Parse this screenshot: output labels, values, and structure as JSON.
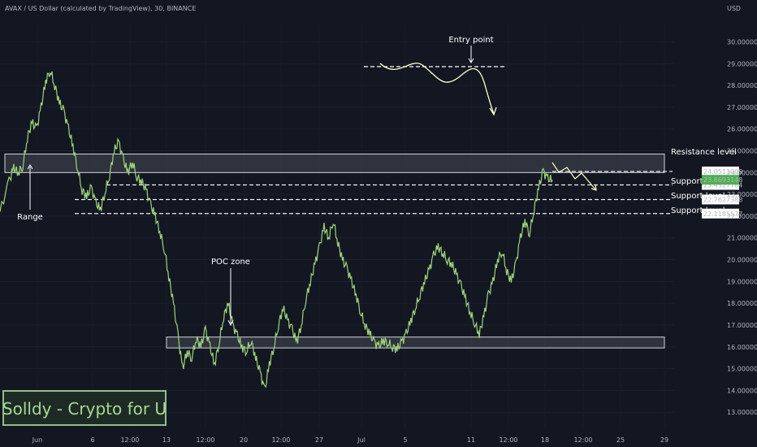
{
  "header": {
    "symbol_line": "AVAX / US Dollar (calculated by TradingView), 30, BINANCE"
  },
  "chart_data": {
    "type": "line",
    "currency_label": "USD",
    "y_ticks": [
      "30.0000000",
      "29.0000000",
      "28.0000000",
      "27.0000000",
      "26.0000000",
      "25.0000000",
      "24.0000000",
      "23.0000000",
      "22.0000000",
      "21.0000000",
      "20.0000000",
      "19.0000000",
      "18.0000000",
      "17.0000000",
      "16.0000000",
      "15.0000000",
      "14.0000000",
      "13.0000000"
    ],
    "x_ticks": [
      "Jun",
      "6",
      "12:00",
      "13",
      "12:00",
      "20",
      "12:00",
      "27",
      "Jul",
      "5",
      "11",
      "12:00",
      "18",
      "12:00",
      "25",
      "29"
    ],
    "ylim": [
      12.3,
      30.8
    ],
    "price_path": [
      [
        0,
        22.2
      ],
      [
        2,
        23.6
      ],
      [
        3,
        24.2
      ],
      [
        4,
        24.0
      ],
      [
        5,
        24.3
      ],
      [
        6,
        25.6
      ],
      [
        7,
        26.3
      ],
      [
        8,
        26.0
      ],
      [
        9,
        27.0
      ],
      [
        10,
        28.2
      ],
      [
        11,
        28.7
      ],
      [
        12,
        28.0
      ],
      [
        13,
        27.2
      ],
      [
        14,
        26.8
      ],
      [
        15,
        26.0
      ],
      [
        16,
        25.2
      ],
      [
        17,
        24.2
      ],
      [
        18,
        23.2
      ],
      [
        19,
        22.9
      ],
      [
        20,
        23.3
      ],
      [
        21,
        22.6
      ],
      [
        22,
        22.3
      ],
      [
        23,
        23.1
      ],
      [
        24,
        23.9
      ],
      [
        25,
        25.0
      ],
      [
        26,
        25.4
      ],
      [
        27,
        24.6
      ],
      [
        28,
        24.0
      ],
      [
        29,
        24.5
      ],
      [
        30,
        23.8
      ],
      [
        31,
        23.6
      ],
      [
        32,
        23.2
      ],
      [
        33,
        22.5
      ],
      [
        34,
        22.0
      ],
      [
        35,
        21.3
      ],
      [
        36,
        20.5
      ],
      [
        37,
        19.2
      ],
      [
        38,
        18.0
      ],
      [
        39,
        16.5
      ],
      [
        40,
        15.0
      ],
      [
        41,
        15.8
      ],
      [
        42,
        15.5
      ],
      [
        43,
        16.4
      ],
      [
        44,
        16.0
      ],
      [
        45,
        16.8
      ],
      [
        46,
        16.0
      ],
      [
        47,
        15.2
      ],
      [
        48,
        16.2
      ],
      [
        49,
        17.4
      ],
      [
        50,
        18.0
      ],
      [
        51,
        17.0
      ],
      [
        52,
        16.5
      ],
      [
        53,
        16.0
      ],
      [
        54,
        15.8
      ],
      [
        55,
        16.3
      ],
      [
        56,
        15.5
      ],
      [
        57,
        14.8
      ],
      [
        58,
        14.0
      ],
      [
        59,
        15.2
      ],
      [
        60,
        16.0
      ],
      [
        61,
        17.0
      ],
      [
        62,
        17.8
      ],
      [
        63,
        17.2
      ],
      [
        64,
        16.8
      ],
      [
        65,
        16.2
      ],
      [
        66,
        17.0
      ],
      [
        67,
        18.2
      ],
      [
        68,
        19.0
      ],
      [
        69,
        19.8
      ],
      [
        70,
        20.6
      ],
      [
        71,
        21.5
      ],
      [
        72,
        21.0
      ],
      [
        73,
        21.8
      ],
      [
        74,
        20.8
      ],
      [
        75,
        20.0
      ],
      [
        76,
        19.6
      ],
      [
        77,
        19.0
      ],
      [
        78,
        18.4
      ],
      [
        79,
        17.6
      ],
      [
        80,
        17.0
      ],
      [
        81,
        16.6
      ],
      [
        82,
        16.2
      ],
      [
        83,
        16.0
      ],
      [
        84,
        16.3
      ],
      [
        85,
        16.2
      ],
      [
        86,
        16.0
      ],
      [
        87,
        15.9
      ],
      [
        88,
        16.2
      ],
      [
        89,
        16.6
      ],
      [
        90,
        17.2
      ],
      [
        91,
        17.8
      ],
      [
        92,
        18.4
      ],
      [
        93,
        19.0
      ],
      [
        94,
        19.5
      ],
      [
        95,
        20.2
      ],
      [
        96,
        20.6
      ],
      [
        97,
        20.3
      ],
      [
        98,
        20.0
      ],
      [
        99,
        19.8
      ],
      [
        100,
        19.3
      ],
      [
        101,
        18.8
      ],
      [
        102,
        18.2
      ],
      [
        103,
        17.6
      ],
      [
        104,
        17.1
      ],
      [
        105,
        16.6
      ],
      [
        106,
        17.4
      ],
      [
        107,
        18.4
      ],
      [
        108,
        19.0
      ],
      [
        109,
        20.0
      ],
      [
        110,
        20.4
      ],
      [
        111,
        19.5
      ],
      [
        112,
        19.0
      ],
      [
        113,
        19.8
      ],
      [
        114,
        21.0
      ],
      [
        115,
        21.8
      ],
      [
        116,
        21.2
      ],
      [
        117,
        22.3
      ],
      [
        118,
        23.3
      ],
      [
        119,
        24.05
      ],
      [
        120,
        23.7
      ],
      [
        121,
        23.67
      ]
    ],
    "x_path_range": [
      0,
      121
    ],
    "ranges": [
      {
        "y1": 24.85,
        "y2": 24.0,
        "x1": 0,
        "x2": 117
      },
      {
        "y1": 16.45,
        "y2": 15.95,
        "x1": 36,
        "x2": 117
      }
    ],
    "levels": [
      {
        "y": 24.0511009,
        "x1": 118,
        "x2": 117,
        "label": "Resistance level",
        "price": "24.0511009"
      },
      {
        "y": 23.4327784,
        "x1": 22,
        "x2": 117,
        "label": "Support level",
        "price": "23.4327784"
      },
      {
        "y": 22.7627388,
        "x1": 16,
        "x2": 117,
        "label": "Support level",
        "price": "22.7627388"
      },
      {
        "y": 22.1185577,
        "x1": 16,
        "x2": 117,
        "label": "Support level",
        "price": "22.1185577"
      }
    ],
    "current_price": "23.6693148",
    "annotations": [
      {
        "text": "Entry point"
      },
      {
        "text": "Range"
      },
      {
        "text": "POC zone"
      }
    ],
    "watermark": "Solldy - Crypto for U"
  }
}
